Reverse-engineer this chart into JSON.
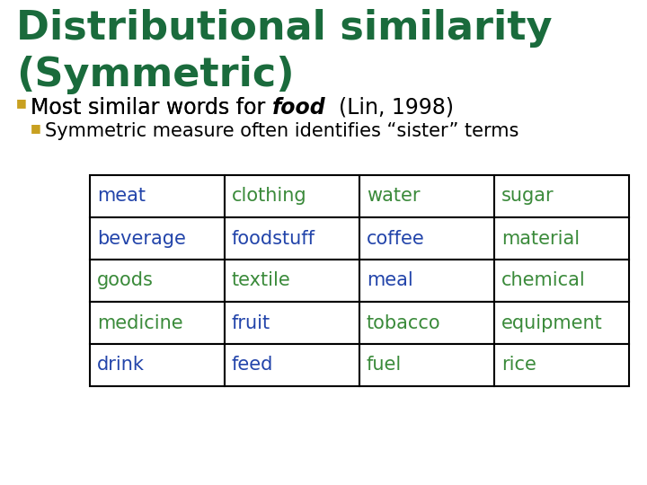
{
  "title_line1": "Distributional similarity",
  "title_line2": "(Symmetric)",
  "title_color": "#1a6b3c",
  "bullet1_text_plain": "Most similar words for ",
  "bullet1_text_bold": "food",
  "bullet1_text_suffix": "  (Lin, 1998)",
  "bullet1_color": "#000000",
  "bullet2_text": "Symmetric measure often identifies “sister” terms",
  "bullet2_color": "#000000",
  "bullet1_marker_color": "#c8a020",
  "bullet2_marker_color": "#c8a020",
  "table_data": [
    [
      "meat",
      "clothing",
      "water",
      "sugar"
    ],
    [
      "beverage",
      "foodstuff",
      "coffee",
      "material"
    ],
    [
      "goods",
      "textile",
      "meal",
      "chemical"
    ],
    [
      "medicine",
      "fruit",
      "tobacco",
      "equipment"
    ],
    [
      "drink",
      "feed",
      "fuel",
      "rice"
    ]
  ],
  "cell_colors": [
    [
      "#2244aa",
      "#3a8a3a",
      "#3a8a3a",
      "#3a8a3a"
    ],
    [
      "#2244aa",
      "#2244aa",
      "#2244aa",
      "#3a8a3a"
    ],
    [
      "#3a8a3a",
      "#3a8a3a",
      "#2244aa",
      "#3a8a3a"
    ],
    [
      "#3a8a3a",
      "#2244aa",
      "#3a8a3a",
      "#3a8a3a"
    ],
    [
      "#2244aa",
      "#2244aa",
      "#3a8a3a",
      "#3a8a3a"
    ]
  ],
  "background_color": "#ffffff",
  "title_fontsize": 32,
  "bullet1_fontsize": 17,
  "bullet2_fontsize": 15,
  "table_fontsize": 15
}
